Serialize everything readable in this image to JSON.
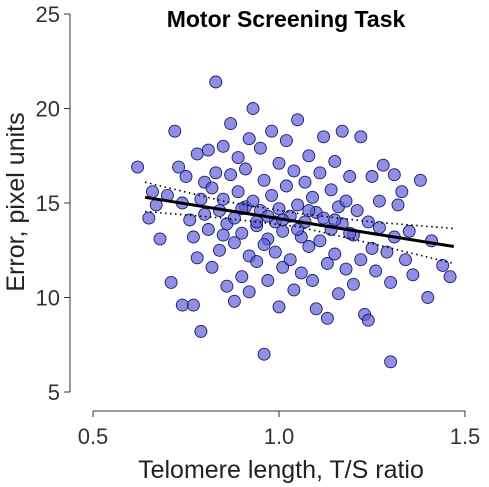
{
  "chart_data": {
    "type": "scatter",
    "title": "Motor Screening Task",
    "xlabel": "Telomere length, T/S ratio",
    "ylabel": "Error, pixel units",
    "xlim": [
      0.5,
      1.5
    ],
    "ylim": [
      5,
      25
    ],
    "xticks": [
      "0.5",
      "1.0",
      "1.5"
    ],
    "yticks": [
      "5",
      "10",
      "15",
      "20",
      "25"
    ],
    "colors": {
      "point_fill": "#5a5ad8",
      "point_stroke": "#1a1a66",
      "line": "#000000"
    },
    "fit_line": {
      "x": [
        0.64,
        1.47
      ],
      "y": [
        15.3,
        12.7
      ]
    },
    "ci_upper": {
      "x": [
        0.64,
        0.85,
        1.05,
        1.25,
        1.47
      ],
      "y": [
        16.1,
        15.1,
        14.45,
        14.0,
        13.65
      ]
    },
    "ci_lower": {
      "x": [
        0.64,
        0.85,
        1.05,
        1.25,
        1.47
      ],
      "y": [
        14.55,
        14.2,
        13.75,
        12.85,
        11.8
      ]
    },
    "points": [
      [
        0.62,
        16.9
      ],
      [
        0.65,
        14.2
      ],
      [
        0.66,
        15.6
      ],
      [
        0.67,
        14.9
      ],
      [
        0.68,
        13.1
      ],
      [
        0.7,
        15.4
      ],
      [
        0.71,
        10.8
      ],
      [
        0.72,
        18.8
      ],
      [
        0.73,
        16.9
      ],
      [
        0.74,
        15.0
      ],
      [
        0.74,
        9.6
      ],
      [
        0.75,
        16.4
      ],
      [
        0.76,
        14.1
      ],
      [
        0.77,
        13.2
      ],
      [
        0.77,
        9.6
      ],
      [
        0.78,
        17.6
      ],
      [
        0.78,
        12.1
      ],
      [
        0.79,
        15.2
      ],
      [
        0.8,
        16.1
      ],
      [
        0.8,
        14.4
      ],
      [
        0.81,
        17.8
      ],
      [
        0.81,
        13.6
      ],
      [
        0.82,
        15.8
      ],
      [
        0.82,
        11.6
      ],
      [
        0.83,
        21.4
      ],
      [
        0.83,
        16.6
      ],
      [
        0.84,
        14.6
      ],
      [
        0.84,
        12.5
      ],
      [
        0.85,
        18.0
      ],
      [
        0.85,
        15.2
      ],
      [
        0.86,
        13.9
      ],
      [
        0.86,
        10.6
      ],
      [
        0.87,
        19.2
      ],
      [
        0.87,
        16.5
      ],
      [
        0.88,
        14.2
      ],
      [
        0.88,
        12.9
      ],
      [
        0.89,
        17.4
      ],
      [
        0.89,
        15.6
      ],
      [
        0.9,
        13.4
      ],
      [
        0.9,
        11.1
      ],
      [
        0.91,
        16.8
      ],
      [
        0.91,
        14.8
      ],
      [
        0.92,
        18.4
      ],
      [
        0.92,
        12.2
      ],
      [
        0.93,
        20.0
      ],
      [
        0.93,
        15.1
      ],
      [
        0.94,
        13.8
      ],
      [
        0.94,
        11.9
      ],
      [
        0.95,
        17.9
      ],
      [
        0.95,
        14.6
      ],
      [
        0.96,
        7.0
      ],
      [
        0.96,
        16.2
      ],
      [
        0.97,
        13.1
      ],
      [
        0.97,
        10.9
      ],
      [
        0.98,
        18.8
      ],
      [
        0.98,
        15.4
      ],
      [
        0.99,
        14.0
      ],
      [
        0.99,
        12.4
      ],
      [
        1.0,
        17.1
      ],
      [
        1.0,
        14.7
      ],
      [
        1.01,
        11.6
      ],
      [
        1.01,
        13.5
      ],
      [
        1.02,
        18.3
      ],
      [
        1.02,
        15.9
      ],
      [
        1.03,
        14.3
      ],
      [
        1.03,
        12.0
      ],
      [
        1.04,
        16.7
      ],
      [
        1.04,
        10.4
      ],
      [
        1.05,
        19.4
      ],
      [
        1.05,
        14.9
      ],
      [
        1.06,
        13.2
      ],
      [
        1.06,
        11.3
      ],
      [
        1.07,
        16.1
      ],
      [
        1.07,
        14.0
      ],
      [
        1.08,
        17.5
      ],
      [
        1.08,
        12.7
      ],
      [
        1.09,
        15.3
      ],
      [
        1.09,
        10.9
      ],
      [
        1.1,
        14.5
      ],
      [
        1.1,
        9.4
      ],
      [
        1.11,
        16.6
      ],
      [
        1.11,
        13.0
      ],
      [
        1.12,
        18.5
      ],
      [
        1.12,
        14.2
      ],
      [
        1.13,
        11.8
      ],
      [
        1.14,
        15.7
      ],
      [
        1.14,
        13.6
      ],
      [
        1.15,
        17.2
      ],
      [
        1.15,
        12.3
      ],
      [
        1.16,
        14.8
      ],
      [
        1.16,
        10.2
      ],
      [
        1.17,
        18.8
      ],
      [
        1.17,
        13.9
      ],
      [
        1.18,
        15.1
      ],
      [
        1.18,
        11.5
      ],
      [
        1.19,
        16.4
      ],
      [
        1.2,
        13.3
      ],
      [
        1.2,
        10.7
      ],
      [
        1.21,
        14.6
      ],
      [
        1.22,
        18.5
      ],
      [
        1.22,
        12.0
      ],
      [
        1.23,
        9.1
      ],
      [
        1.24,
        8.8
      ],
      [
        1.24,
        14.0
      ],
      [
        1.25,
        12.6
      ],
      [
        1.25,
        16.4
      ],
      [
        1.26,
        11.4
      ],
      [
        1.27,
        15.1
      ],
      [
        1.27,
        13.7
      ],
      [
        1.28,
        17.0
      ],
      [
        1.29,
        12.4
      ],
      [
        1.3,
        10.8
      ],
      [
        1.3,
        6.6
      ],
      [
        1.31,
        16.5
      ],
      [
        1.31,
        13.2
      ],
      [
        1.32,
        14.9
      ],
      [
        1.33,
        15.6
      ],
      [
        1.34,
        12.0
      ],
      [
        1.35,
        13.5
      ],
      [
        1.36,
        11.2
      ],
      [
        1.38,
        16.2
      ],
      [
        1.4,
        10.0
      ],
      [
        1.41,
        13.0
      ],
      [
        1.44,
        11.7
      ],
      [
        1.46,
        11.1
      ],
      [
        0.79,
        8.2
      ],
      [
        0.88,
        9.8
      ],
      [
        0.92,
        10.3
      ],
      [
        1.0,
        9.5
      ],
      [
        1.13,
        8.9
      ],
      [
        0.94,
        14.0
      ],
      [
        0.97,
        14.3
      ],
      [
        1.01,
        14.1
      ],
      [
        0.9,
        14.7
      ],
      [
        1.05,
        13.6
      ],
      [
        0.85,
        13.3
      ],
      [
        0.96,
        12.8
      ],
      [
        1.08,
        14.6
      ],
      [
        1.15,
        14.1
      ],
      [
        1.19,
        13.4
      ]
    ]
  }
}
